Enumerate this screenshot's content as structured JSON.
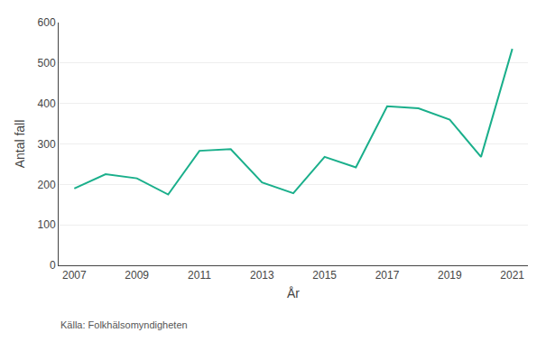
{
  "chart_data": {
    "type": "line",
    "x": [
      2007,
      2008,
      2009,
      2010,
      2011,
      2012,
      2013,
      2014,
      2015,
      2016,
      2017,
      2018,
      2019,
      2020,
      2021
    ],
    "values": [
      190,
      225,
      215,
      175,
      283,
      287,
      205,
      178,
      268,
      242,
      393,
      388,
      360,
      268,
      535
    ],
    "color": "#1aaf8b",
    "xlabel": "År",
    "ylabel": "Antal fall",
    "source": "Källa: Folkhälsomyndigheten",
    "xlim": [
      2006.5,
      2021.5
    ],
    "xticks": [
      2007,
      2009,
      2011,
      2013,
      2015,
      2017,
      2019,
      2021
    ],
    "ylim": [
      0,
      600
    ],
    "yticks": [
      0,
      100,
      200,
      300,
      400,
      500,
      600
    ],
    "grid": "y"
  }
}
